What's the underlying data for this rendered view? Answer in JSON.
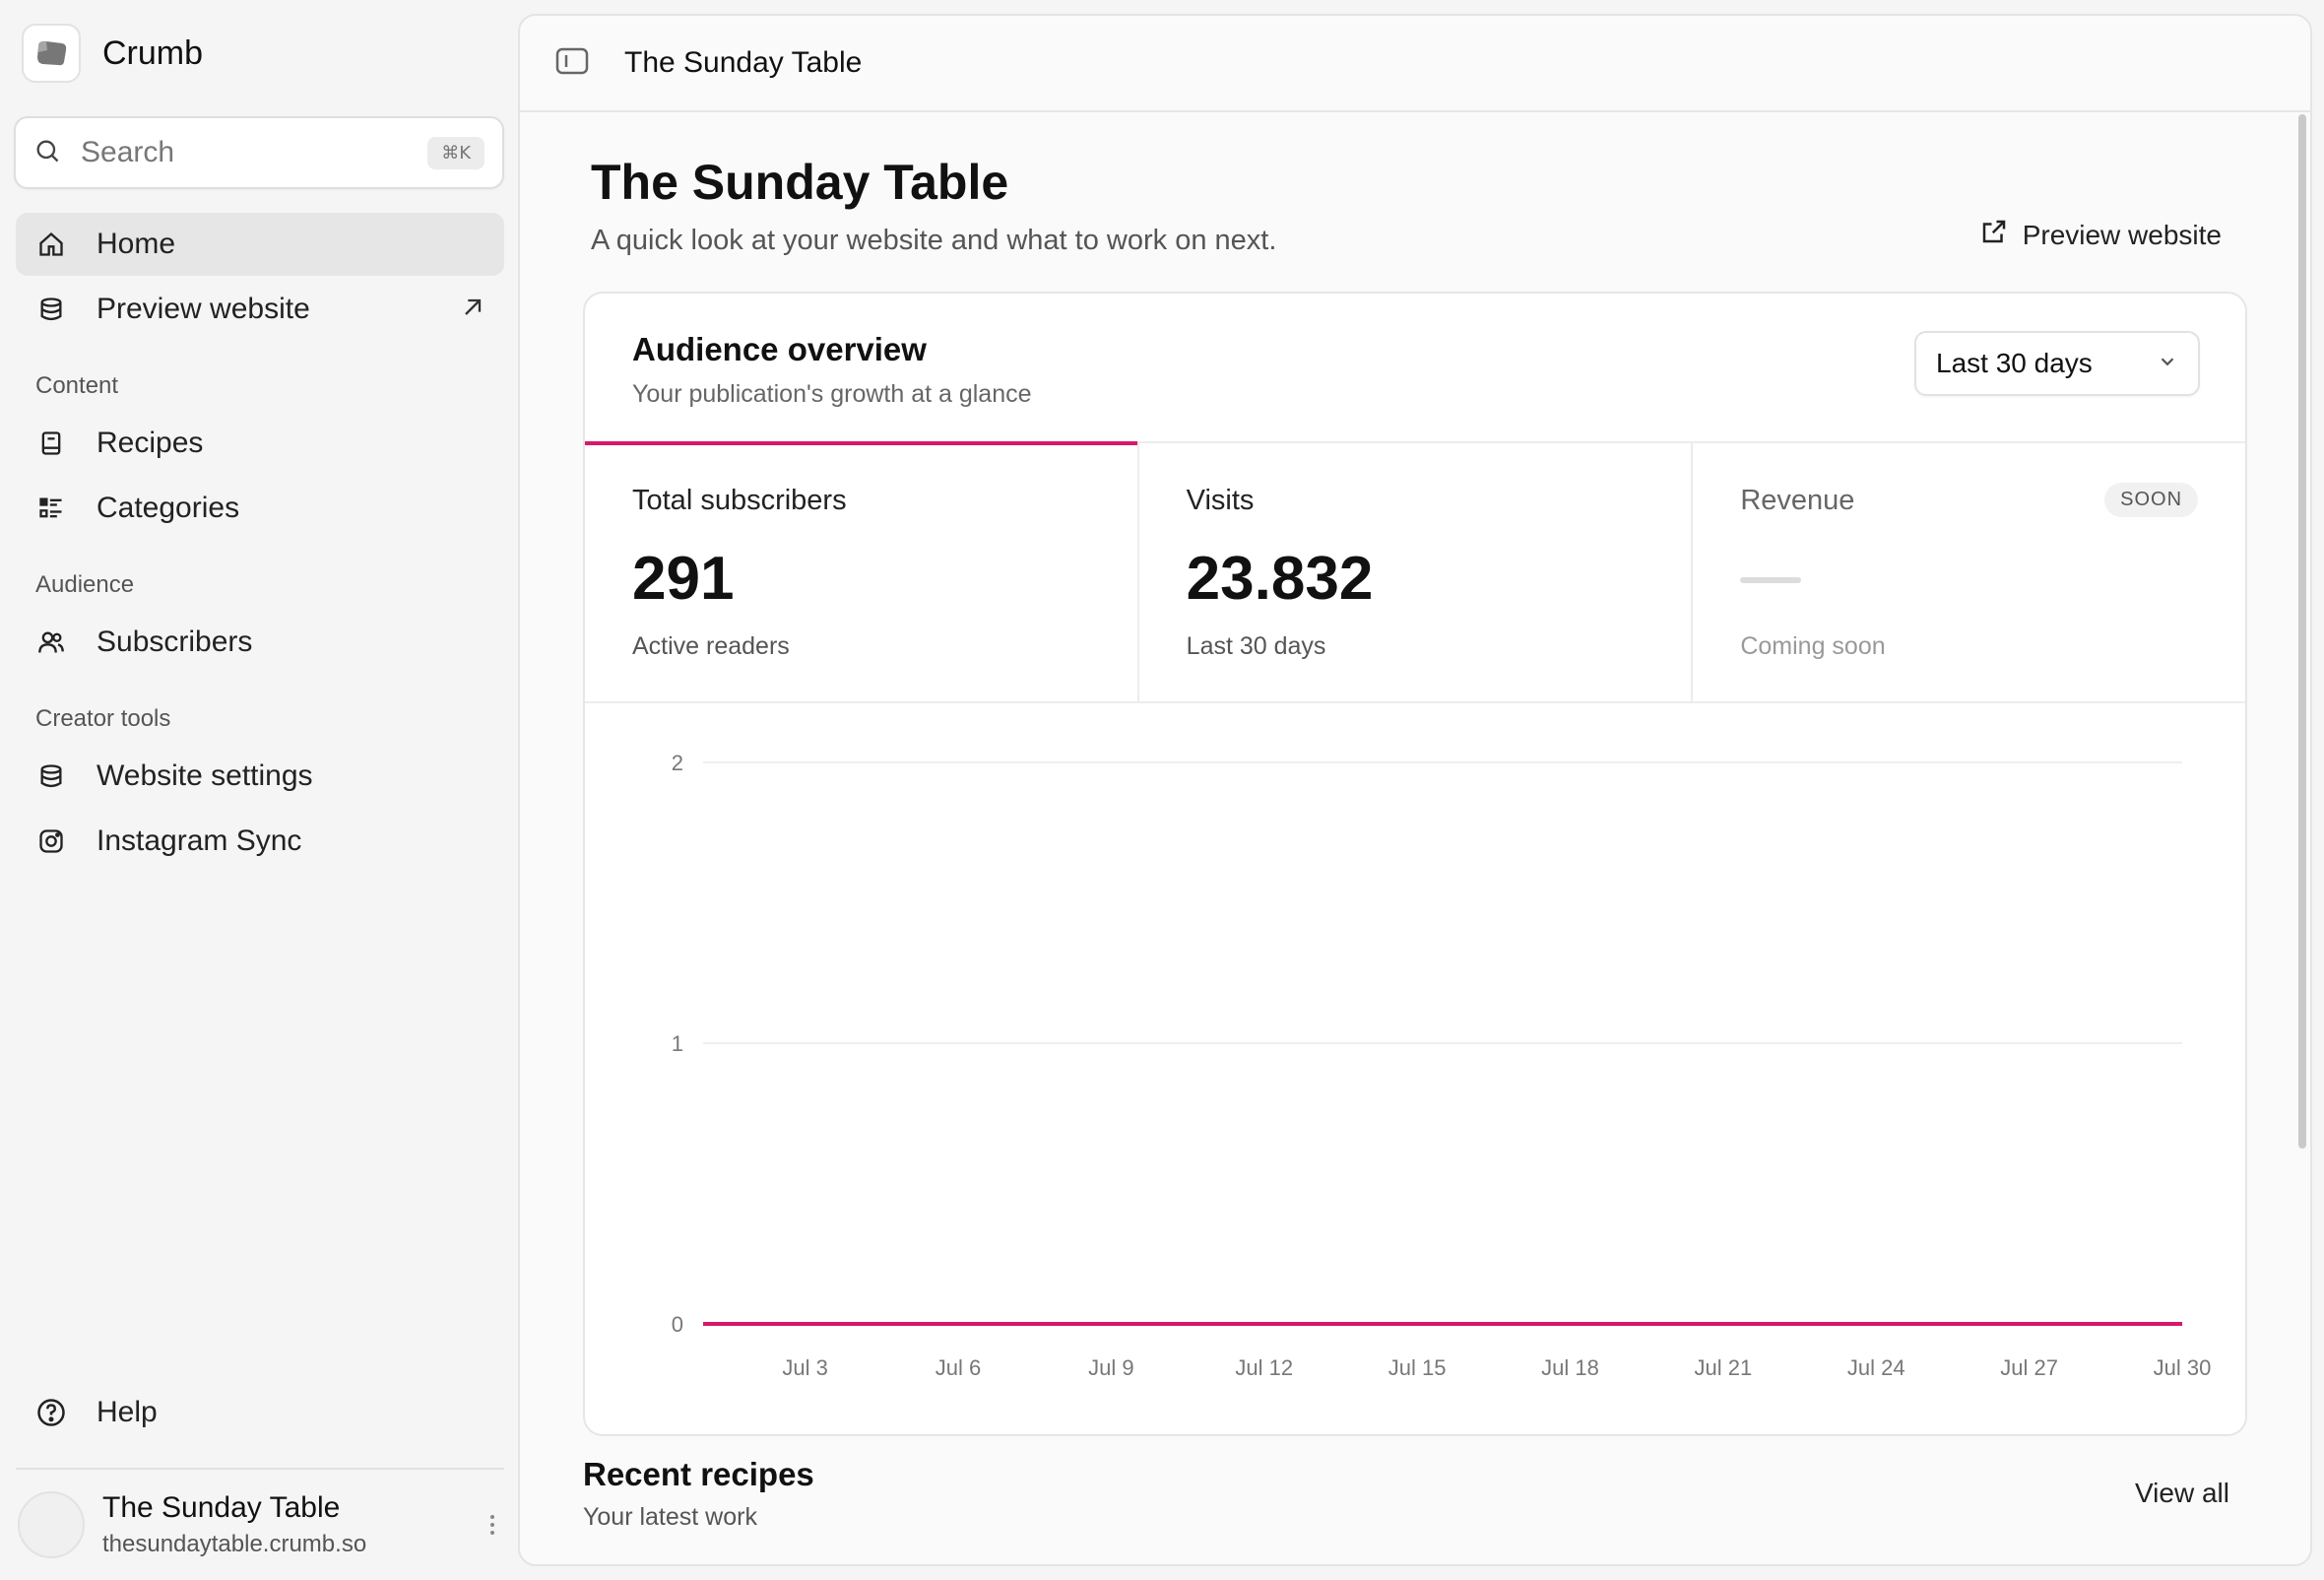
{
  "sidebar": {
    "brand": "Crumb",
    "search": {
      "placeholder": "Search",
      "shortcut": "⌘K"
    },
    "nav": {
      "home": "Home",
      "preview": "Preview website"
    },
    "sections": {
      "content": "Content",
      "audience": "Audience",
      "creator_tools": "Creator tools"
    },
    "content_items": {
      "recipes": "Recipes",
      "categories": "Categories"
    },
    "audience_items": {
      "subscribers": "Subscribers"
    },
    "creator_items": {
      "website_settings": "Website settings",
      "instagram_sync": "Instagram Sync"
    },
    "help": "Help",
    "account": {
      "name": "The Sunday Table",
      "url": "thesundaytable.crumb.so"
    }
  },
  "topbar": {
    "title": "The Sunday Table"
  },
  "page": {
    "title": "The Sunday Table",
    "subtitle": "A quick look at your website and what to work on next.",
    "preview_link": "Preview website"
  },
  "overview": {
    "title": "Audience overview",
    "subtitle": "Your publication's growth at a glance",
    "range": "Last 30 days",
    "stats": {
      "subscribers": {
        "label": "Total subscribers",
        "value": "291",
        "caption": "Active readers"
      },
      "visits": {
        "label": "Visits",
        "value": "23.832",
        "caption": "Last 30 days"
      },
      "revenue": {
        "label": "Revenue",
        "badge": "SOON",
        "caption": "Coming soon"
      }
    }
  },
  "chart_data": {
    "type": "line",
    "x": [
      "Jul 1",
      "Jul 2",
      "Jul 3",
      "Jul 4",
      "Jul 5",
      "Jul 6",
      "Jul 7",
      "Jul 8",
      "Jul 9",
      "Jul 10",
      "Jul 11",
      "Jul 12",
      "Jul 13",
      "Jul 14",
      "Jul 15",
      "Jul 16",
      "Jul 17",
      "Jul 18",
      "Jul 19",
      "Jul 20",
      "Jul 21",
      "Jul 22",
      "Jul 23",
      "Jul 24",
      "Jul 25",
      "Jul 26",
      "Jul 27",
      "Jul 28",
      "Jul 29",
      "Jul 30"
    ],
    "xticks": [
      "Jul 3",
      "Jul 6",
      "Jul 9",
      "Jul 12",
      "Jul 15",
      "Jul 18",
      "Jul 21",
      "Jul 24",
      "Jul 27",
      "Jul 30"
    ],
    "series": [
      {
        "values": [
          0,
          0,
          0,
          0,
          0,
          0,
          0,
          0,
          0,
          0,
          0,
          0,
          0,
          0,
          0,
          0,
          0,
          0,
          0,
          0,
          0,
          0,
          0,
          0,
          0,
          0,
          0,
          0,
          0,
          0
        ]
      }
    ],
    "yticks": [
      "0",
      "1",
      "2"
    ],
    "ylim": [
      0,
      2
    ],
    "grid": true,
    "color": "#d6196a"
  },
  "recent": {
    "title": "Recent recipes",
    "subtitle": "Your latest work",
    "view_all": "View all"
  }
}
